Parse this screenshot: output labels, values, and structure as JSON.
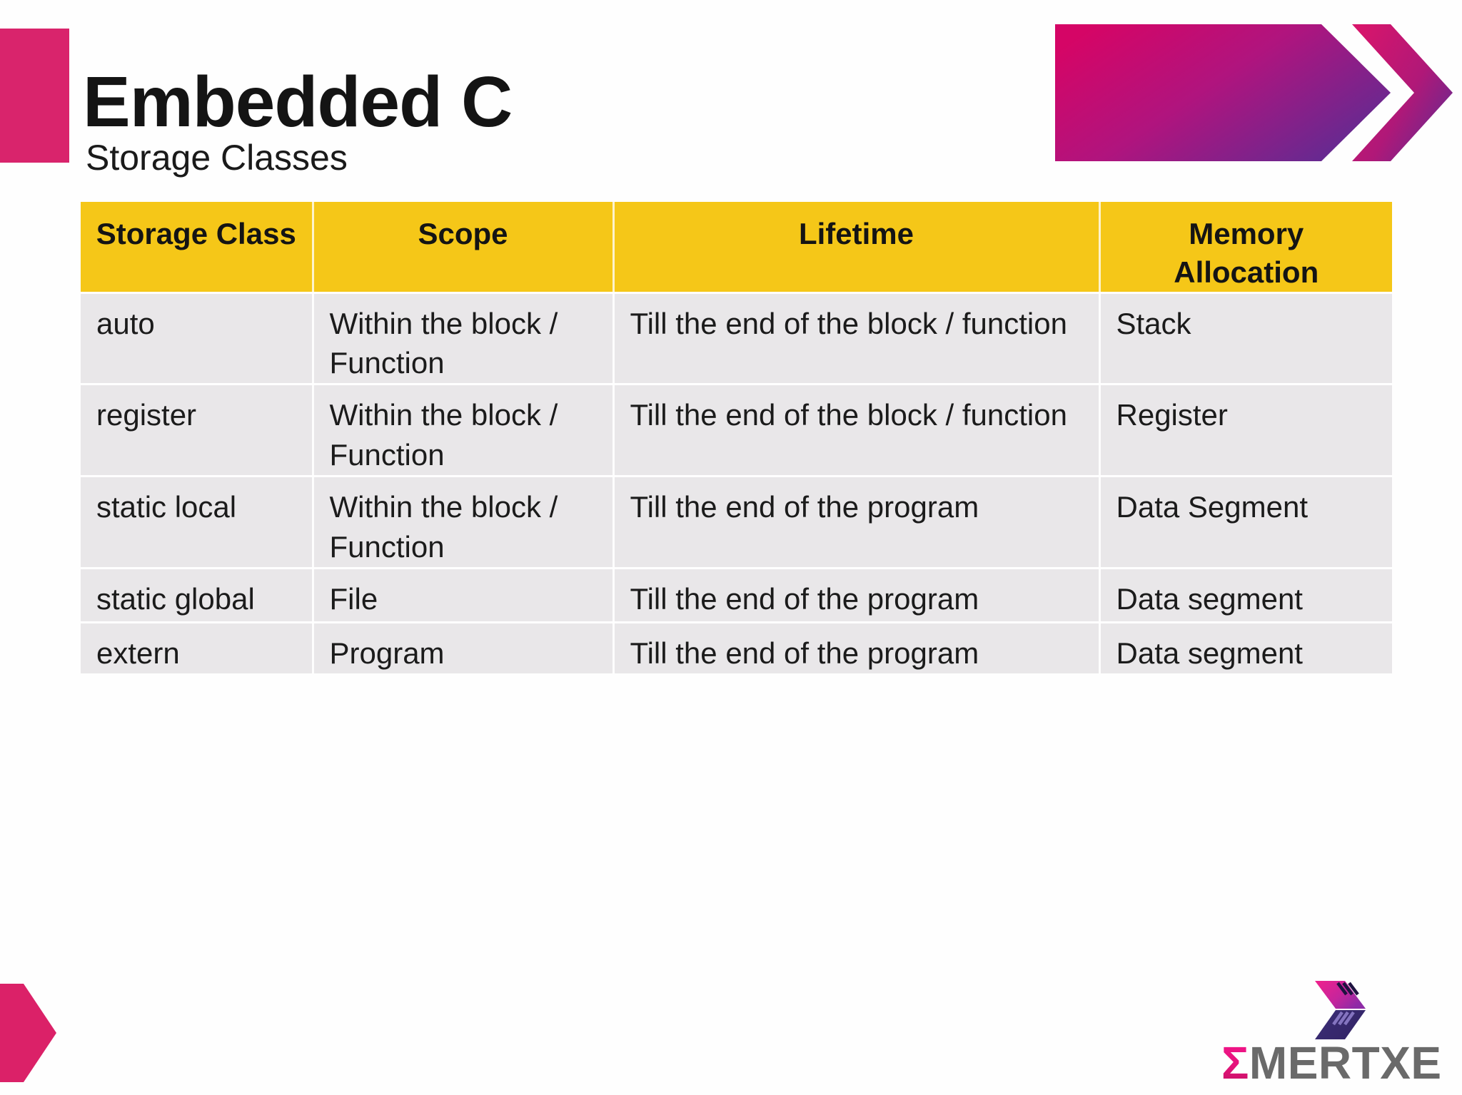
{
  "slide": {
    "title": "Embedded C",
    "subtitle": "Storage Classes"
  },
  "table": {
    "headers": [
      "Storage Class",
      "Scope",
      "Lifetime",
      "Memory Allocation"
    ],
    "rows": [
      [
        "auto",
        "Within the block / Function",
        "Till the end of the block / function",
        "Stack"
      ],
      [
        "register",
        "Within the block / Function",
        "Till the end of the block / function",
        "Register"
      ],
      [
        "static local",
        "Within the block / Function",
        "Till the end of the program",
        "Data Segment"
      ],
      [
        "static global",
        "File",
        "Till the end of the program",
        "Data segment"
      ],
      [
        "extern",
        "Program",
        "Till the end of the program",
        "Data segment"
      ]
    ]
  },
  "logo": {
    "sigma": "Σ",
    "name": "MERTXE"
  },
  "colors": {
    "header_yellow": "#f5c718",
    "row_gray": "#e9e7e9",
    "accent_pink": "#d9246c",
    "gradient_pink": "#d50566",
    "gradient_purple": "#5d2c93",
    "logo_text_gray": "#6a6a6a",
    "logo_sigma_pink": "#e5137b",
    "logo_icon_navy": "#372a70"
  }
}
